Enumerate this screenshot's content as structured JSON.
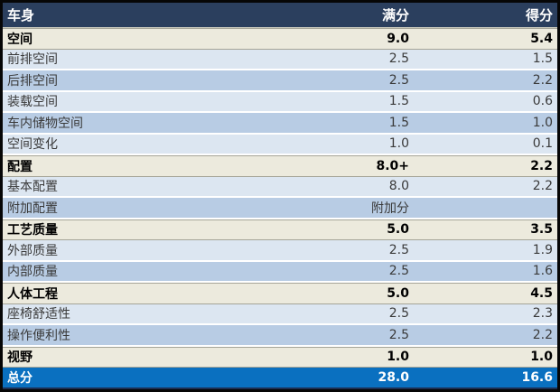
{
  "table": {
    "header": {
      "category": "车身",
      "max": "满分",
      "score": "得分"
    },
    "rows": [
      {
        "label": "空间",
        "max": "9.0",
        "score": "5.4",
        "kind": "section"
      },
      {
        "label": "前排空间",
        "max": "2.5",
        "score": "1.5",
        "kind": "item"
      },
      {
        "label": "后排空间",
        "max": "2.5",
        "score": "2.2",
        "kind": "item"
      },
      {
        "label": "装载空间",
        "max": "1.5",
        "score": "0.6",
        "kind": "item"
      },
      {
        "label": "车内储物空间",
        "max": "1.5",
        "score": "1.0",
        "kind": "item"
      },
      {
        "label": "空间变化",
        "max": "1.0",
        "score": "0.1",
        "kind": "item"
      },
      {
        "label": "配置",
        "max": "8.0+",
        "score": "2.2",
        "kind": "section"
      },
      {
        "label": "基本配置",
        "max": "8.0",
        "score": "2.2",
        "kind": "item"
      },
      {
        "label": "附加配置",
        "max": "附加分",
        "score": "",
        "kind": "item"
      },
      {
        "label": "工艺质量",
        "max": "5.0",
        "score": "3.5",
        "kind": "section"
      },
      {
        "label": "外部质量",
        "max": "2.5",
        "score": "1.9",
        "kind": "item"
      },
      {
        "label": "内部质量",
        "max": "2.5",
        "score": "1.6",
        "kind": "item"
      },
      {
        "label": "人体工程",
        "max": "5.0",
        "score": "4.5",
        "kind": "section"
      },
      {
        "label": "座椅舒适性",
        "max": "2.5",
        "score": "2.3",
        "kind": "item"
      },
      {
        "label": "操作便利性",
        "max": "2.5",
        "score": "2.2",
        "kind": "item"
      },
      {
        "label": "视野",
        "max": "1.0",
        "score": "1.0",
        "kind": "section"
      }
    ],
    "total": {
      "label": "总分",
      "max": "28.0",
      "score": "16.6"
    }
  },
  "colors": {
    "header_bg": "#2b3f5e",
    "header_text": "#ffffff",
    "section_bg": "#eceadd",
    "row_light_bg": "#dce6f1",
    "row_dark_bg": "#b8cce4",
    "total_bg": "#0a70c0",
    "total_text": "#ffffff",
    "body_text": "#3a3a3a",
    "outer_border": "#060606"
  }
}
